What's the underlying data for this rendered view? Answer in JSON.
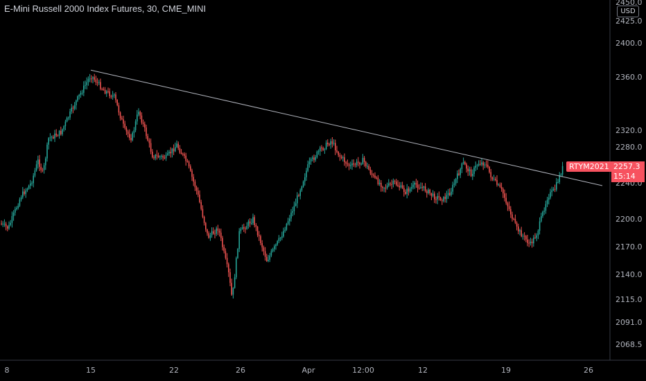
{
  "header": {
    "title": "E-Mini Russell 2000 Index Futures, 30, CME_MINI"
  },
  "currency": "USD",
  "last_price": {
    "symbol": "RTYM2021",
    "price": "2257.3",
    "countdown": "15:14"
  },
  "colors": {
    "up": "#26a69a",
    "down": "#ef5350",
    "background": "#000000",
    "trendline": "#b2b5be",
    "badge": "#f7525f"
  },
  "chart_data": {
    "type": "candlestick",
    "title": "E-Mini Russell 2000 Index Futures, 30, CME_MINI",
    "y_ticks": [
      "2450.0",
      "2425.0",
      "2400.0",
      "2360.0",
      "2320.0",
      "2280.0",
      "2240.0",
      "2200.0",
      "2170.0",
      "2140.0",
      "2115.0",
      "2091.0",
      "2068.5"
    ],
    "x_ticks": [
      "8",
      "15",
      "22",
      "26",
      "Apr",
      "12:00",
      "12",
      "19",
      "26"
    ],
    "close_path": [
      {
        "t": "8",
        "v": 2195
      },
      {
        "t": "8.5",
        "v": 2190
      },
      {
        "t": "9.5",
        "v": 2225
      },
      {
        "t": "10.5",
        "v": 2240
      },
      {
        "t": "11",
        "v": 2265
      },
      {
        "t": "11.5",
        "v": 2250
      },
      {
        "t": "12",
        "v": 2300
      },
      {
        "t": "13",
        "v": 2315
      },
      {
        "t": "14",
        "v": 2340
      },
      {
        "t": "15",
        "v": 2362
      },
      {
        "t": "16",
        "v": 2350
      },
      {
        "t": "17",
        "v": 2345
      },
      {
        "t": "18",
        "v": 2320
      },
      {
        "t": "19",
        "v": 2300
      },
      {
        "t": "20",
        "v": 2335
      },
      {
        "t": "21",
        "v": 2315
      },
      {
        "t": "21.5",
        "v": 2270
      },
      {
        "t": "22",
        "v": 2268
      },
      {
        "t": "23",
        "v": 2285
      },
      {
        "t": "24",
        "v": 2262
      },
      {
        "t": "24.5",
        "v": 2228
      },
      {
        "t": "25",
        "v": 2180
      },
      {
        "t": "25.5",
        "v": 2190
      },
      {
        "t": "26",
        "v": 2140
      },
      {
        "t": "26.5",
        "v": 2115
      },
      {
        "t": "27",
        "v": 2185
      },
      {
        "t": "28",
        "v": 2200
      },
      {
        "t": "29",
        "v": 2155
      },
      {
        "t": "30",
        "v": 2180
      },
      {
        "t": "31",
        "v": 2215
      },
      {
        "t": "Apr",
        "v": 2260
      },
      {
        "t": "Apr 1",
        "v": 2275
      },
      {
        "t": "Apr 2",
        "v": 2295
      },
      {
        "t": "Apr 3",
        "v": 2270
      },
      {
        "t": "Apr 4",
        "v": 2258
      },
      {
        "t": "12:00",
        "v": 2265
      },
      {
        "t": "Apr 6",
        "v": 2245
      },
      {
        "t": "Apr 7",
        "v": 2235
      },
      {
        "t": "Apr 8",
        "v": 2240
      },
      {
        "t": "Apr 9",
        "v": 2230
      },
      {
        "t": "Apr 10",
        "v": 2238
      },
      {
        "t": "Apr 11",
        "v": 2232
      },
      {
        "t": "12",
        "v": 2225
      },
      {
        "t": "13",
        "v": 2222
      },
      {
        "t": "14",
        "v": 2230
      },
      {
        "t": "15",
        "v": 2262
      },
      {
        "t": "16",
        "v": 2250
      },
      {
        "t": "17",
        "v": 2262
      },
      {
        "t": "18",
        "v": 2262
      },
      {
        "t": "19",
        "v": 2245
      },
      {
        "t": "20",
        "v": 2230
      },
      {
        "t": "21",
        "v": 2190
      },
      {
        "t": "21.5",
        "v": 2172
      },
      {
        "t": "22",
        "v": 2185
      },
      {
        "t": "23",
        "v": 2225
      },
      {
        "t": "23.5",
        "v": 2232
      },
      {
        "t": "24",
        "v": 2257.3
      }
    ],
    "trendline": {
      "from": {
        "t": "15",
        "v": 2368
      },
      "to": {
        "t": "26",
        "v": 2240
      }
    }
  }
}
